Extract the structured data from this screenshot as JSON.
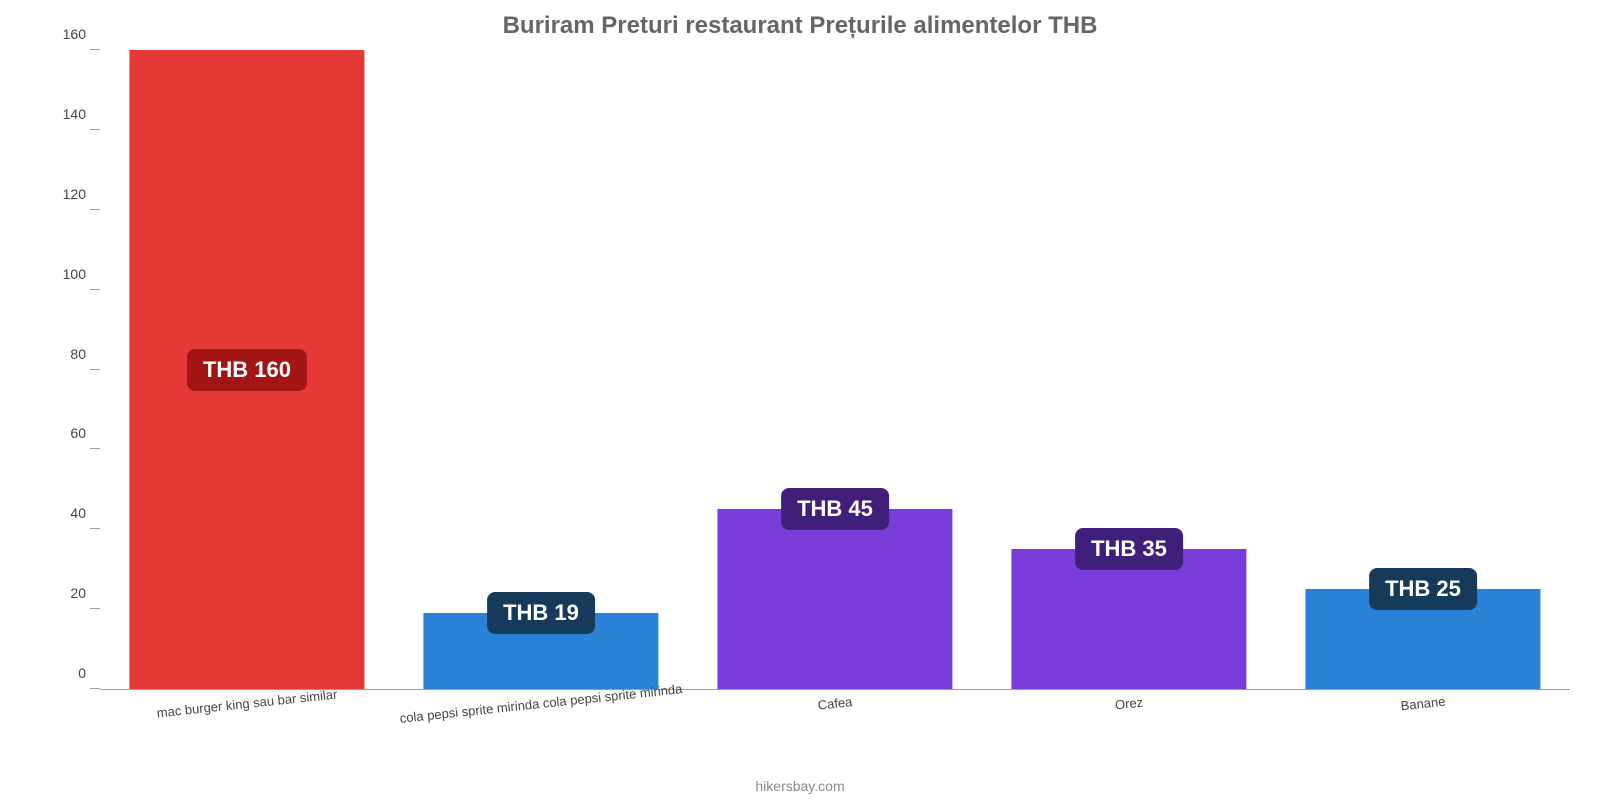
{
  "chart": {
    "type": "bar",
    "title": "Buriram Preturi restaurant Prețurile alimentelor THB",
    "title_color": "#666666",
    "title_fontsize": 24,
    "background_color": "#ffffff",
    "axis_color": "#9e9e9e",
    "ylim_max": 160,
    "ylim_min": 0,
    "ytick_step": 20,
    "yticks": [
      0,
      20,
      40,
      60,
      80,
      100,
      120,
      140,
      160
    ],
    "bar_width_pct": 80,
    "label_fontsize": 22,
    "xlabel_fontsize": 13,
    "ylabel_fontsize": 14,
    "xlabel_rotation_deg": -6,
    "categories": [
      "mac burger king sau bar similar",
      "cola pepsi sprite mirinda cola pepsi sprite mirinda",
      "Cafea",
      "Orez",
      "Banane"
    ],
    "values": [
      160,
      19,
      45,
      35,
      25
    ],
    "bar_colors": [
      "#e53935",
      "#2a82d6",
      "#7a3cd9",
      "#7a3cd9",
      "#2a82d6"
    ],
    "value_labels": [
      "THB 160",
      "THB 19",
      "THB 45",
      "THB 35",
      "THB 25"
    ],
    "value_label_bg": [
      "#a31515",
      "#163a5a",
      "#3f1f7a",
      "#3f1f7a",
      "#163a5a"
    ],
    "value_label_text_color": "#ffffff",
    "credit": "hikersbay.com",
    "credit_color": "#888888"
  }
}
